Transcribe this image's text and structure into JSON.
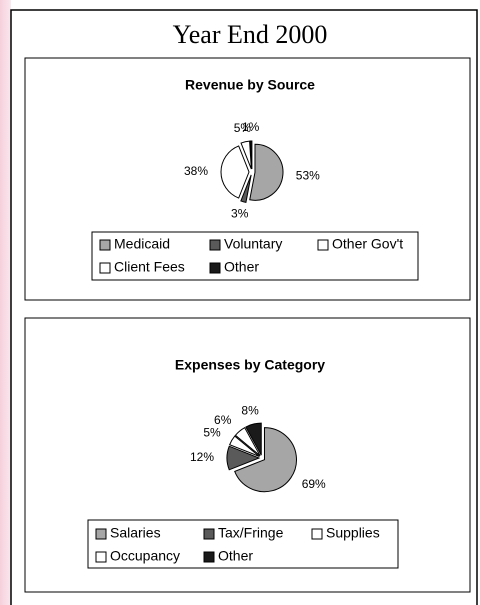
{
  "page": {
    "title": "Year End 2000"
  },
  "chart_data": [
    {
      "type": "pie",
      "title": "Revenue by Source",
      "categories": [
        "Medicaid",
        "Voluntary",
        "Other Gov't",
        "Client Fees",
        "Other"
      ],
      "values": [
        53,
        3,
        38,
        5,
        1
      ],
      "value_labels": [
        "53%",
        "3%",
        "38%",
        "5%",
        "1%"
      ],
      "colors": [
        "#a6a6a6",
        "#5a5a5a",
        "#ffffff",
        "#ffffff",
        "#1a1a1a"
      ]
    },
    {
      "type": "pie",
      "title": "Expenses by Category",
      "categories": [
        "Salaries",
        "Tax/Fringe",
        "Supplies",
        "Occupancy",
        "Other"
      ],
      "values": [
        69,
        12,
        5,
        6,
        8
      ],
      "value_labels": [
        "69%",
        "12%",
        "5%",
        "6%",
        "8%"
      ],
      "colors": [
        "#a6a6a6",
        "#5a5a5a",
        "#ffffff",
        "#ffffff",
        "#1a1a1a"
      ]
    }
  ]
}
